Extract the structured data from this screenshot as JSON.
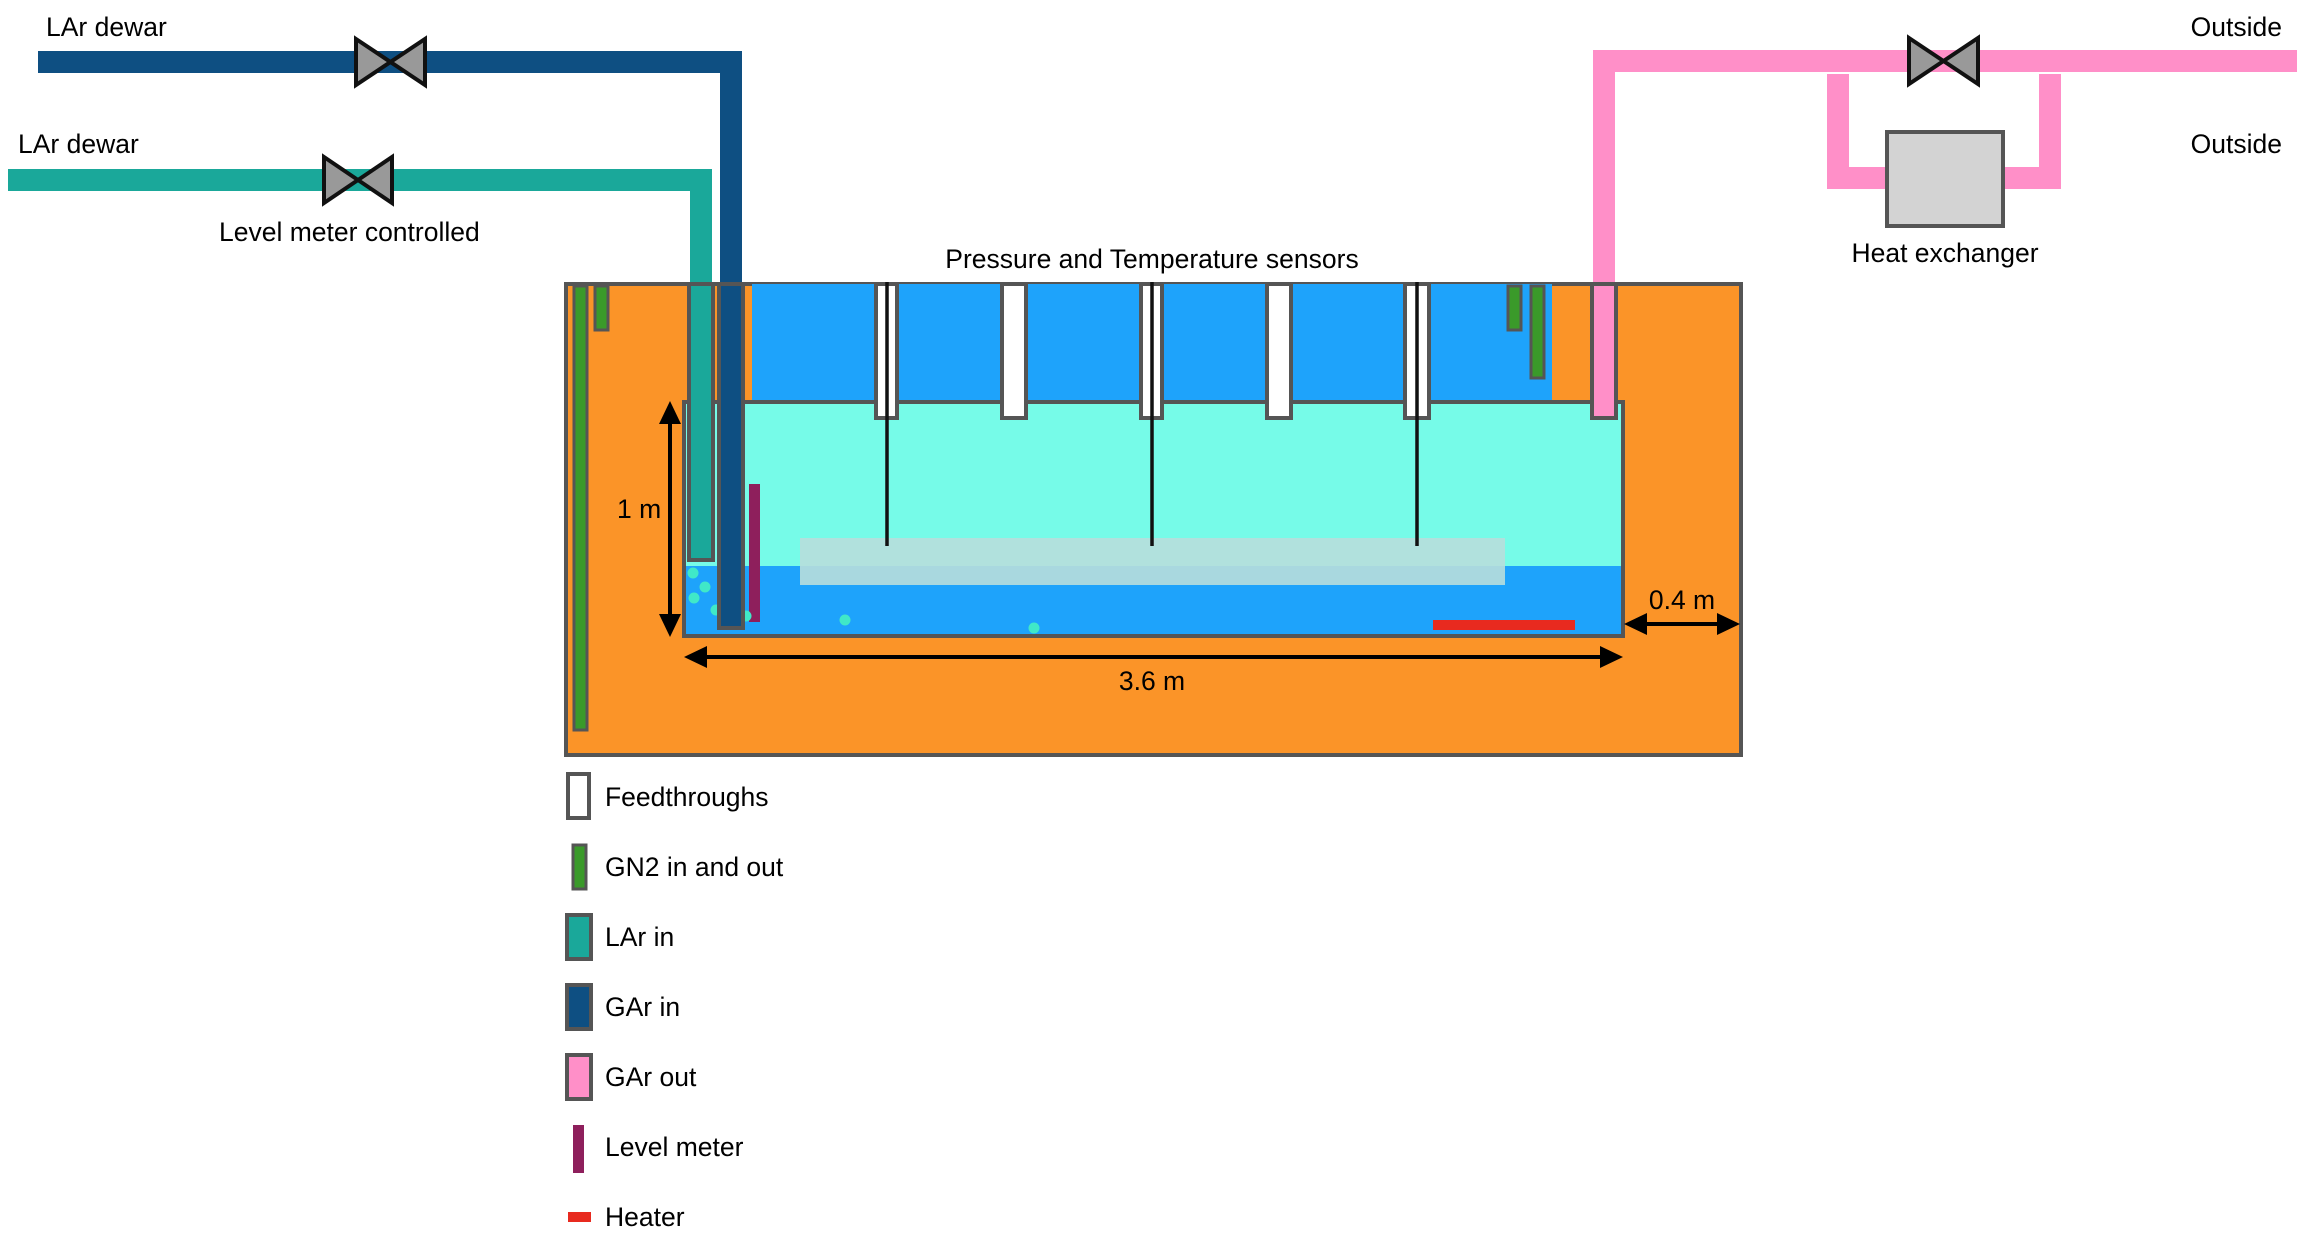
{
  "labels": {
    "lar_dewar_top": "LAr dewar",
    "lar_dewar_bottom": "LAr dewar",
    "level_meter_controlled": "Level meter controlled",
    "pressure_temp_sensors": "Pressure and Temperature sensors",
    "outside_top": "Outside",
    "outside_bottom": "Outside",
    "heat_exchanger": "Heat exchanger",
    "height_dim": "1 m",
    "width_dim": "3.6 m",
    "gap_dim": "0.4 m"
  },
  "legend": [
    {
      "key": "feedthroughs",
      "label": "Feedthroughs",
      "color": "#ffffff"
    },
    {
      "key": "gn2",
      "label": "GN2 in and out",
      "color": "#3a9a2a"
    },
    {
      "key": "lar_in",
      "label": "LAr in",
      "color": "#1aa89a"
    },
    {
      "key": "gar_in",
      "label": "GAr in",
      "color": "#0e4f82"
    },
    {
      "key": "gar_out",
      "label": "GAr out",
      "color": "#ff8fc8"
    },
    {
      "key": "level_meter",
      "label": "Level meter",
      "color": "#8e1f5c"
    },
    {
      "key": "heater",
      "label": "Heater",
      "color": "#e82a1f"
    }
  ],
  "colors": {
    "insulation": "#fb9428",
    "gas_region": "#1ea3fb",
    "liquid_upper": "#76fbe8",
    "liquid_lower": "#1ea3fb",
    "plate": "#b8dedb",
    "valve": "#999999",
    "heat_exchanger": "#d3d3d3",
    "bubbles": "#40e8c8"
  },
  "icons": {
    "valve": "bowtie-valve-icon"
  }
}
